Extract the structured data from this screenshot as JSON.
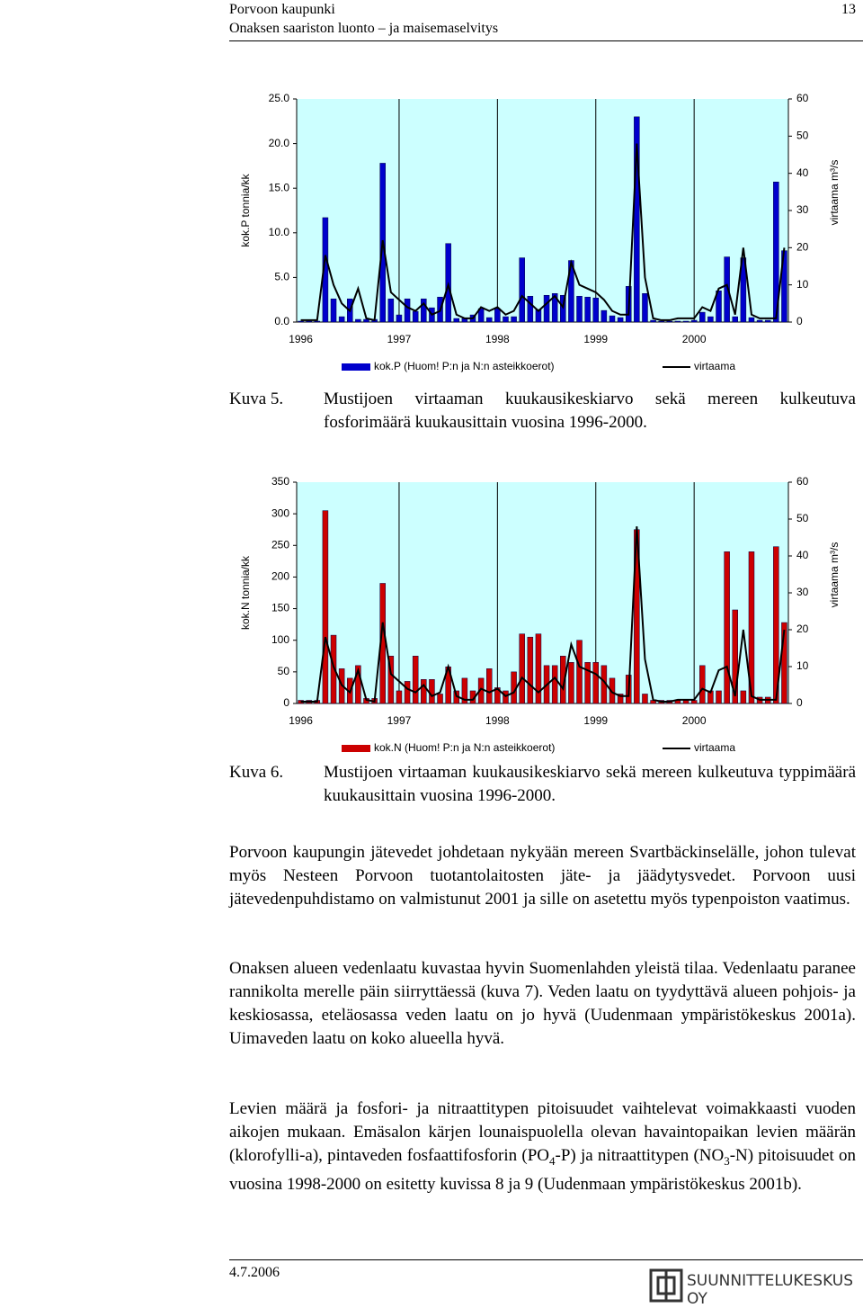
{
  "header": {
    "title": "Porvoon kaupunki",
    "page_number": "13",
    "subtitle": "Onaksen saariston luonto – ja maisemaselvitys"
  },
  "chart_data": [
    {
      "type": "bar",
      "y_label": "kok.P tonnia/kk",
      "y2_label": "virtaama m³/s",
      "categories": [
        "1996",
        null,
        null,
        null,
        null,
        null,
        null,
        null,
        null,
        null,
        null,
        null,
        "1997",
        null,
        null,
        null,
        null,
        null,
        null,
        null,
        null,
        null,
        null,
        null,
        "1998",
        null,
        null,
        null,
        null,
        null,
        null,
        null,
        null,
        null,
        null,
        null,
        "1999",
        null,
        null,
        null,
        null,
        null,
        null,
        null,
        null,
        null,
        null,
        null,
        "2000",
        null,
        null,
        null,
        null,
        null,
        null,
        null,
        null,
        null,
        null,
        null
      ],
      "series": [
        {
          "name": "kok.P (Huom! P:n ja N:n asteikkoerot)",
          "type": "bar",
          "color": "#0000cc",
          "values": [
            0.1,
            0.1,
            0.1,
            11.7,
            2.6,
            0.6,
            2.6,
            0.3,
            0.3,
            0.3,
            17.8,
            2.6,
            0.8,
            2.6,
            1.2,
            2.6,
            1.6,
            2.8,
            8.8,
            0.4,
            0.4,
            0.8,
            1.5,
            0.5,
            1.5,
            0.6,
            0.6,
            7.2,
            2.9,
            1.4,
            3.0,
            3.2,
            3.0,
            6.9,
            2.9,
            2.8,
            2.7,
            1.3,
            0.7,
            0.5,
            4.0,
            23.0,
            3.2,
            0.2,
            0.1,
            0.1,
            0.1,
            0.1,
            0.2,
            1.1,
            0.6,
            3.5,
            7.3,
            0.6,
            7.2,
            0.5,
            0.2,
            0.2,
            15.7,
            8.0
          ]
        },
        {
          "name": "virtaama",
          "type": "line",
          "axis": "y2",
          "color": "#000000",
          "values": [
            0.5,
            0.5,
            0.5,
            18,
            10,
            5,
            3,
            9,
            1,
            0.5,
            22,
            8,
            6,
            4,
            3,
            5,
            2,
            3,
            10,
            2,
            1,
            1,
            4,
            3,
            4,
            2,
            3,
            7,
            5,
            3,
            5,
            7,
            4,
            16,
            10,
            9,
            8,
            6,
            3,
            2,
            2,
            48,
            12,
            1,
            0.5,
            0.5,
            1,
            1,
            1,
            4,
            3,
            9,
            10,
            2,
            20,
            2,
            1,
            1,
            1,
            20
          ]
        }
      ],
      "ylim": [
        0,
        25
      ],
      "yticks": [
        {
          "value": 0,
          "label": "0.0"
        },
        {
          "value": 5,
          "label": "5.0"
        },
        {
          "value": 10,
          "label": "10.0"
        },
        {
          "value": 15,
          "label": "15.0"
        },
        {
          "value": 20,
          "label": "20.0"
        },
        {
          "value": 25,
          "label": "25.0"
        }
      ],
      "y2lim": [
        0,
        60
      ],
      "y2ticks": [
        0,
        10,
        20,
        30,
        40,
        50,
        60
      ],
      "background": "#ccffff"
    },
    {
      "type": "bar",
      "y_label": "kok.N tonnia/kk",
      "y2_label": "virtaama m³/s",
      "categories": [
        "1996",
        null,
        null,
        null,
        null,
        null,
        null,
        null,
        null,
        null,
        null,
        null,
        "1997",
        null,
        null,
        null,
        null,
        null,
        null,
        null,
        null,
        null,
        null,
        null,
        "1998",
        null,
        null,
        null,
        null,
        null,
        null,
        null,
        null,
        null,
        null,
        null,
        "1999",
        null,
        null,
        null,
        null,
        null,
        null,
        null,
        null,
        null,
        null,
        null,
        "2000",
        null,
        null,
        null,
        null,
        null,
        null,
        null,
        null,
        null,
        null,
        null
      ],
      "series": [
        {
          "name": "kok.N (Huom! P:n ja N:n asteikkoerot)",
          "type": "bar",
          "color": "#cc0000",
          "values": [
            5,
            5,
            5,
            305,
            108,
            55,
            40,
            60,
            8,
            8,
            190,
            75,
            20,
            35,
            75,
            38,
            38,
            15,
            58,
            20,
            40,
            20,
            40,
            55,
            25,
            20,
            50,
            110,
            105,
            110,
            60,
            60,
            75,
            65,
            100,
            65,
            65,
            60,
            40,
            15,
            45,
            275,
            15,
            5,
            5,
            5,
            5,
            5,
            5,
            60,
            20,
            20,
            240,
            148,
            20,
            240,
            10,
            10,
            248,
            128
          ]
        },
        {
          "name": "virtaama",
          "type": "line",
          "axis": "y2",
          "color": "#000000",
          "values": [
            0.5,
            0.5,
            0.5,
            18,
            10,
            5,
            3,
            9,
            1,
            0.5,
            22,
            8,
            6,
            4,
            3,
            5,
            2,
            3,
            10,
            2,
            1,
            1,
            4,
            3,
            4,
            2,
            3,
            7,
            5,
            3,
            5,
            7,
            4,
            16,
            10,
            9,
            8,
            6,
            3,
            2,
            2,
            48,
            12,
            1,
            0.5,
            0.5,
            1,
            1,
            1,
            4,
            3,
            9,
            10,
            2,
            20,
            2,
            1,
            1,
            1,
            20
          ]
        }
      ],
      "ylim": [
        0,
        350
      ],
      "yticks": [
        0,
        50,
        100,
        150,
        200,
        250,
        300,
        350
      ],
      "y2lim": [
        0,
        60
      ],
      "y2ticks": [
        0,
        10,
        20,
        30,
        40,
        50,
        60
      ],
      "background": "#ccffff"
    }
  ],
  "captions": [
    {
      "label": "Kuva 5.",
      "text": "Mustijoen virtaaman kuukausikeskiarvo sekä mereen kulkeutuva fosforimäärä kuukausittain vuosina 1996-2000."
    },
    {
      "label": "Kuva 6.",
      "text": "Mustijoen virtaaman kuukausikeskiarvo sekä mereen kulkeutuva typpimäärä kuukausittain vuosina 1996-2000."
    }
  ],
  "paragraphs": [
    [
      "Porvoon kaupungin jätevedet johdetaan nykyään mereen Svartbäckinselälle, johon tulevat myös Nesteen Porvoon tuotantolaitosten jäte- ja jäädytysvedet. Porvoon uusi jätevedenpuhdistamo on valmistunut 2001 ja sille on asetettu myös typenpoiston vaatimus."
    ],
    [
      "Onaksen alueen vedenlaatu kuvastaa hyvin Suomenlahden yleistä tilaa. Vedenlaatu paranee rannikolta merelle päin siirryttäessä (kuva 7). Veden laatu on tyydyttävä alueen pohjois- ja keskiosassa, eteläosassa veden laatu on jo hyvä (Uudenmaan ympäristökeskus 2001a). Uimaveden laatu on koko alueella hyvä."
    ],
    [
      "Levien määrä ja fosfori- ja nitraattitypen pitoisuudet vaihtelevat voimakkaasti vuoden aikojen mukaan. Emäsalon kärjen lounaispuolella olevan havaintopaikan levien määrän (klorofylli-a), pintaveden fosfaattifosforin (PO",
      "4",
      "-P) ja nitraattitypen (NO",
      "3",
      "-N) pitoisuudet on vuosina 1998-2000 on esitetty kuvissa 8 ja 9 (Uudenmaan ympäristökeskus 2001b)."
    ]
  ],
  "footer": {
    "date": "4.7.2006",
    "company": "SUUNNITTELUKESKUS OY"
  }
}
